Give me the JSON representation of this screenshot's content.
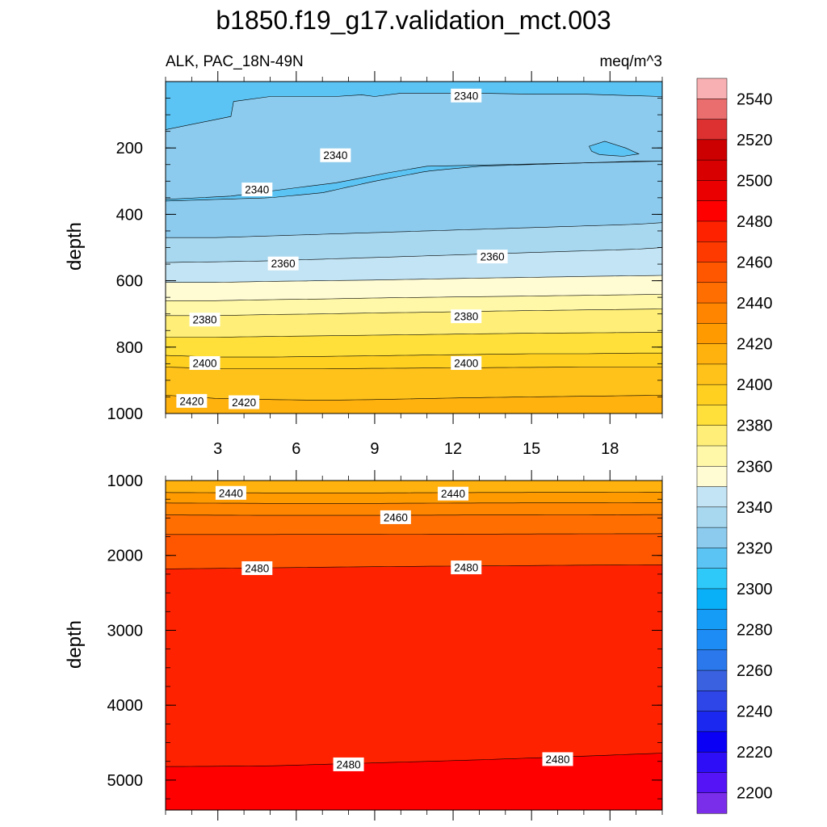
{
  "title": "b1850.f19_g17.validation_mct.003",
  "chart_data": [
    {
      "type": "heatmap",
      "panel": "upper",
      "subtitle_left": "ALK, PAC_18N-49N",
      "subtitle_right": "meq/m^3",
      "ylabel": "depth",
      "xlabel": "",
      "x_range": [
        1,
        20
      ],
      "y_range": [
        0,
        1000
      ],
      "y_reversed": true,
      "x_ticks": [
        3,
        6,
        9,
        12,
        15,
        18
      ],
      "y_ticks": [
        200,
        400,
        600,
        800,
        1000
      ],
      "contour_levels": [
        2330,
        2340,
        2350,
        2360,
        2370,
        2380,
        2390,
        2400,
        2410,
        2420,
        2430
      ],
      "contour_depths_at_x": {
        "x": [
          1,
          3,
          5,
          7,
          9,
          11,
          13,
          15,
          17,
          19,
          20
        ],
        "levels": [
          {
            "level": 2330,
            "depth": [
              360,
              355,
              350,
              335,
              300,
              270,
              255,
              250,
              245,
              240,
              240
            ]
          },
          {
            "level": 2340,
            "depth": [
              470,
              470,
              465,
              460,
              455,
              450,
              445,
              440,
              435,
              430,
              425
            ]
          },
          {
            "level": 2350,
            "depth": [
              545,
              543,
              540,
              535,
              530,
              525,
              520,
              515,
              510,
              505,
              500
            ]
          },
          {
            "level": 2360,
            "depth": [
              605,
              605,
              602,
              600,
              598,
              595,
              592,
              590,
              587,
              585,
              584
            ]
          },
          {
            "level": 2370,
            "depth": [
              660,
              660,
              657,
              655,
              652,
              650,
              648,
              646,
              644,
              642,
              641
            ]
          },
          {
            "level": 2380,
            "depth": [
              705,
              705,
              702,
              700,
              697,
              695,
              692,
              690,
              688,
              686,
              685
            ]
          },
          {
            "level": 2390,
            "depth": [
              770,
              770,
              768,
              766,
              764,
              762,
              760,
              758,
              757,
              756,
              755
            ]
          },
          {
            "level": 2400,
            "depth": [
              825,
              830,
              830,
              828,
              826,
              824,
              822,
              820,
              820,
              818,
              818
            ]
          },
          {
            "level": 2410,
            "depth": [
              860,
              865,
              865,
              865,
              864,
              863,
              862,
              861,
              860,
              860,
              860
            ]
          },
          {
            "level": 2420,
            "depth": [
              945,
              955,
              958,
              960,
              958,
              955,
              952,
              950,
              948,
              946,
              945
            ]
          }
        ]
      },
      "contour_labels": [
        {
          "text": "2340",
          "x": 12.5,
          "y": 42
        },
        {
          "text": "2340",
          "x": 7.5,
          "y": 222
        },
        {
          "text": "2340",
          "x": 4.5,
          "y": 325
        },
        {
          "text": "2360",
          "x": 5.5,
          "y": 548
        },
        {
          "text": "2360",
          "x": 13.5,
          "y": 527
        },
        {
          "text": "2380",
          "x": 2.5,
          "y": 717
        },
        {
          "text": "2380",
          "x": 12.5,
          "y": 707
        },
        {
          "text": "2400",
          "x": 2.5,
          "y": 848
        },
        {
          "text": "2400",
          "x": 12.5,
          "y": 848
        },
        {
          "text": "2420",
          "x": 2,
          "y": 962
        },
        {
          "text": "2420",
          "x": 4,
          "y": 966
        }
      ]
    },
    {
      "type": "heatmap",
      "panel": "lower",
      "ylabel": "depth",
      "xlabel": "",
      "x_range": [
        1,
        20
      ],
      "y_range": [
        1000,
        5400
      ],
      "y_reversed": true,
      "y_ticks": [
        1000,
        2000,
        3000,
        4000,
        5000
      ],
      "contour_levels": [
        2430,
        2440,
        2450,
        2460,
        2470,
        2480
      ],
      "contour_depths_at_x": {
        "x": [
          1,
          5,
          9,
          13,
          17,
          20
        ],
        "levels": [
          {
            "level": 2430,
            "depth": [
              1160,
              1165,
              1165,
              1160,
              1158,
              1155
            ]
          },
          {
            "level": 2440,
            "depth": [
              1300,
              1305,
              1305,
              1300,
              1298,
              1295
            ]
          },
          {
            "level": 2450,
            "depth": [
              1460,
              1465,
              1465,
              1460,
              1458,
              1455
            ]
          },
          {
            "level": 2460,
            "depth": [
              1720,
              1720,
              1718,
              1715,
              1712,
              1710
            ]
          },
          {
            "level": 2470,
            "depth": [
              2180,
              2165,
              2150,
              2140,
              2130,
              2125
            ]
          },
          {
            "level": 2480,
            "depth": [
              4820,
              4810,
              4770,
              4730,
              4680,
              4640
            ]
          }
        ]
      },
      "contour_labels": [
        {
          "text": "2440",
          "x": 3.5,
          "y": 1165
        },
        {
          "text": "2440",
          "x": 12,
          "y": 1175
        },
        {
          "text": "2460",
          "x": 9.8,
          "y": 1490
        },
        {
          "text": "2480",
          "x": 4.5,
          "y": 2170
        },
        {
          "text": "2480",
          "x": 12.5,
          "y": 2160
        },
        {
          "text": "2480",
          "x": 8,
          "y": 4790
        },
        {
          "text": "2480",
          "x": 16,
          "y": 4720
        }
      ]
    }
  ],
  "colorbar": {
    "labels": [
      "2200",
      "2220",
      "2240",
      "2260",
      "2280",
      "2300",
      "2320",
      "2340",
      "2360",
      "2380",
      "2400",
      "2420",
      "2440",
      "2460",
      "2480",
      "2500",
      "2520",
      "2540"
    ],
    "colors": [
      "#7b2eea",
      "#5414f5",
      "#2e0ef7",
      "#0a00f5",
      "#1a28f0",
      "#2e46e8",
      "#3a62e0",
      "#2a78ec",
      "#1e8cf5",
      "#149cf7",
      "#0ab0f7",
      "#2ec8f9",
      "#5cc4f4",
      "#8ccbee",
      "#a8d8f0",
      "#c2e4f4",
      "#fffcd4",
      "#fff8a8",
      "#ffef78",
      "#ffe03a",
      "#ffd020",
      "#ffc21a",
      "#ffb20e",
      "#ff9a00",
      "#ff8400",
      "#ff6e00",
      "#ff5600",
      "#ff3a00",
      "#ff2200",
      "#ff0000",
      "#ea0000",
      "#d80000",
      "#cc0000",
      "#dd3030",
      "#ea6e6e",
      "#f8b0b2"
    ]
  }
}
